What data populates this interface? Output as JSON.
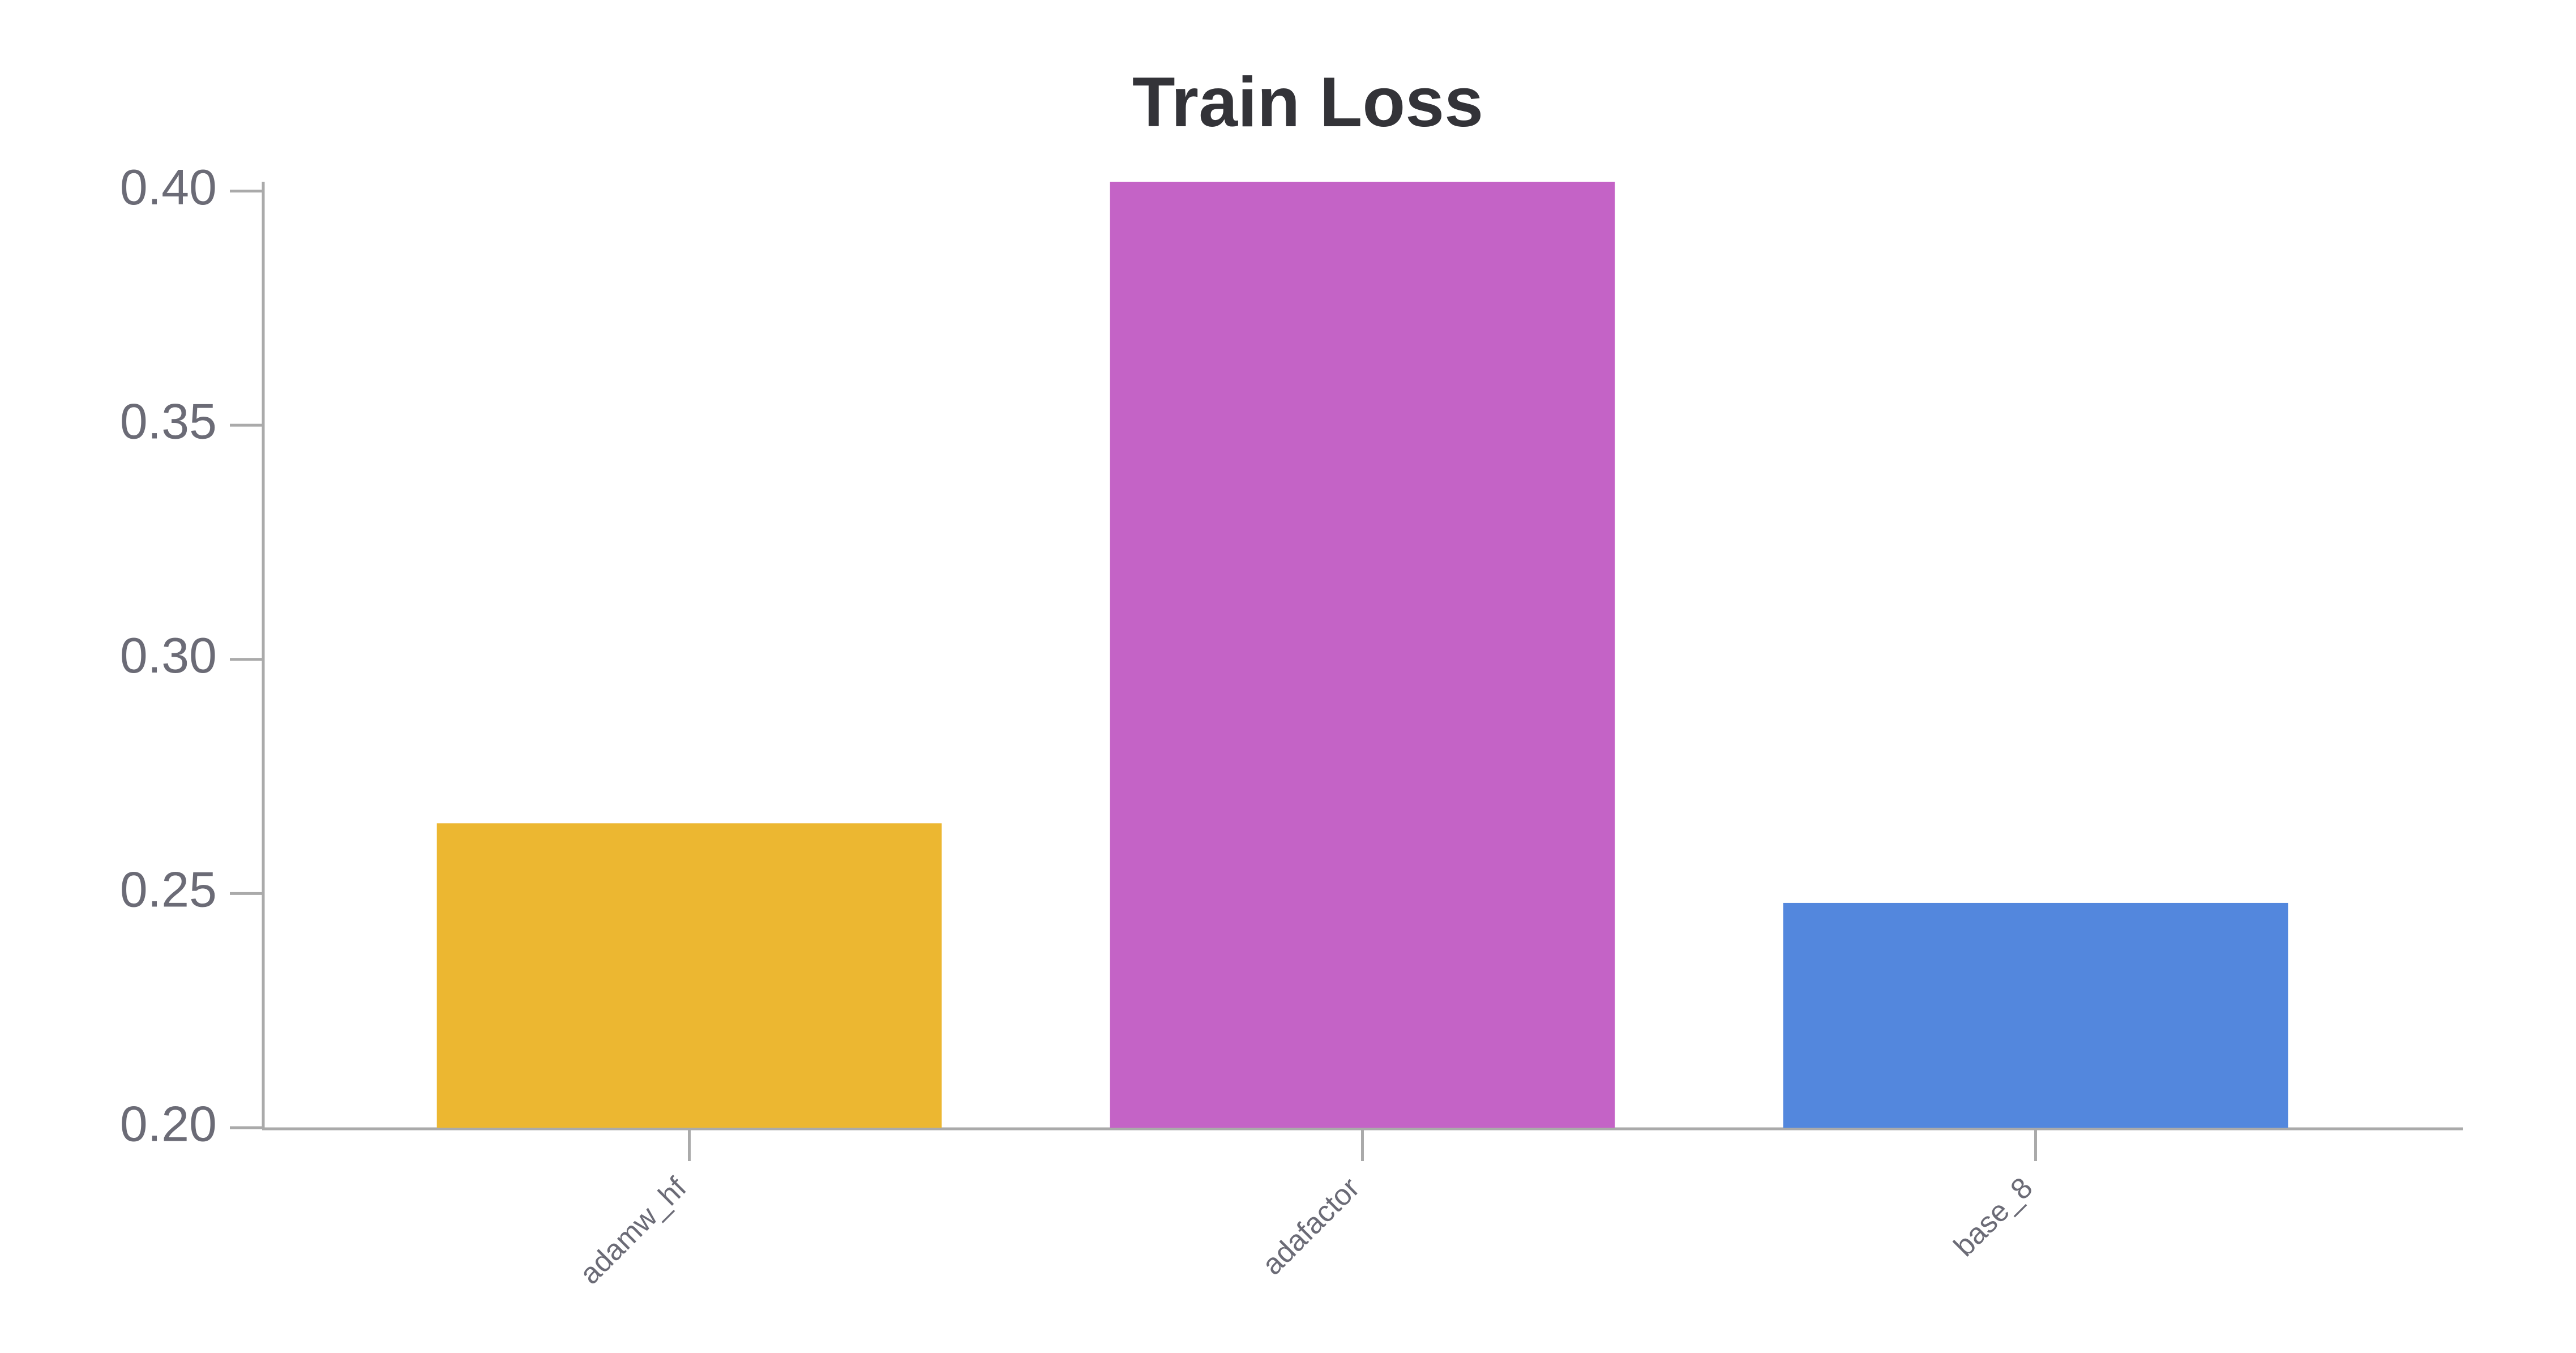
{
  "chart_data": {
    "type": "bar",
    "title": "Train Loss",
    "categories": [
      "adamw_hf",
      "adafactor",
      "base_8"
    ],
    "values": [
      0.265,
      0.402,
      0.248
    ],
    "colors": [
      "#ecb731",
      "#c463c6",
      "#5387dd"
    ],
    "ylim": [
      0.2,
      0.402
    ],
    "yticks": [
      {
        "value": 0.2,
        "label": "0.20"
      },
      0.25,
      {
        "value": 0.3,
        "label": "0.30"
      },
      0.35,
      {
        "value": 0.4,
        "label": "0.40"
      }
    ]
  }
}
